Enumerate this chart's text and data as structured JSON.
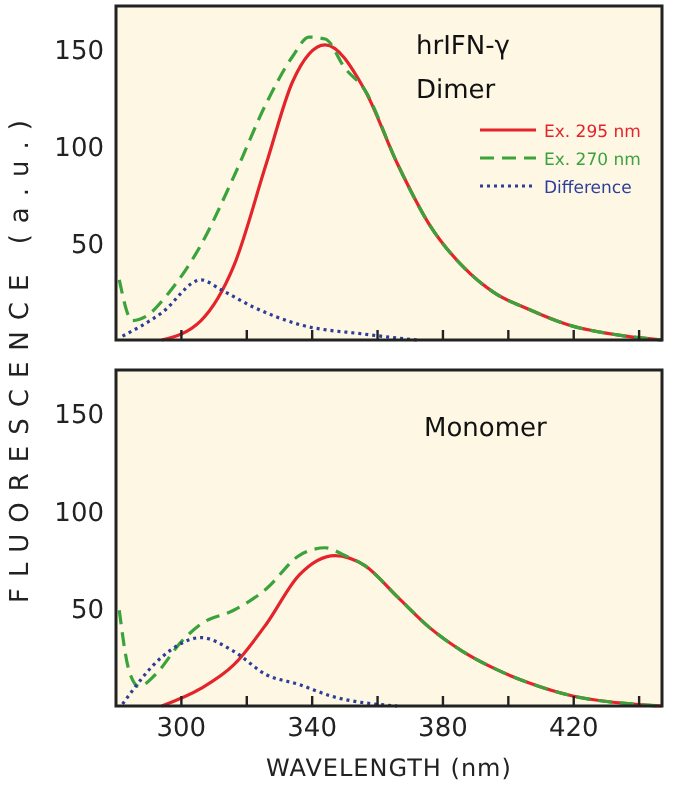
{
  "chart_data": [
    {
      "type": "line",
      "ylabel": "FLUORESCENCE (a.u.)",
      "annotations": [
        "hrIFN-γ",
        "Dimer"
      ],
      "xlim": [
        280,
        447
      ],
      "ylim": [
        0,
        172
      ],
      "xticks": [
        {
          "value": 300,
          "label": null
        },
        {
          "value": 320,
          "label": null
        },
        {
          "value": 340,
          "label": null
        },
        {
          "value": 360,
          "label": null
        },
        {
          "value": 380,
          "label": null
        },
        {
          "value": 400,
          "label": null
        },
        {
          "value": 420,
          "label": null
        },
        {
          "value": 440,
          "label": null
        }
      ],
      "yticks": [
        50,
        100,
        150
      ],
      "tick_labels": "y",
      "legend": "right",
      "grid": false,
      "series": [
        {
          "name": "Ex. 295 nm",
          "color": "#e3242b",
          "line_style": "solid",
          "x": [
            294,
            306,
            316,
            326,
            334,
            344,
            356,
            366,
            376,
            386,
            396,
            406,
            418,
            436,
            447
          ],
          "values": [
            0,
            10,
            38,
            91,
            133,
            152,
            129,
            91,
            59,
            38,
            24,
            16,
            8,
            2,
            0
          ]
        },
        {
          "name": "Ex. 270 nm",
          "color": "#3ba33b",
          "line_style": "dashed",
          "x": [
            281,
            285,
            289,
            296,
            306,
            316,
            326,
            334,
            339,
            344,
            350,
            356,
            366,
            376,
            386,
            396,
            406,
            418,
            436,
            447
          ],
          "values": [
            31,
            10,
            12,
            24,
            49,
            84,
            122,
            146,
            156,
            155,
            140,
            129,
            91,
            59,
            38,
            24,
            16,
            8,
            2,
            0
          ]
        },
        {
          "name": "Difference",
          "color": "#2c3d9a",
          "line_style": "dotted",
          "x": [
            282,
            294,
            306,
            312,
            322,
            336,
            356,
            372
          ],
          "values": [
            2,
            14,
            31,
            26,
            17,
            8,
            3,
            0
          ]
        }
      ]
    },
    {
      "type": "line",
      "xlabel": "WAVELENGTH (nm)",
      "annotations": [
        "Monomer"
      ],
      "xlim": [
        280,
        447
      ],
      "ylim": [
        0,
        172
      ],
      "xticks": [
        300,
        {
          "value": 320,
          "label": null
        },
        340,
        {
          "value": 360,
          "label": null
        },
        380,
        {
          "value": 400,
          "label": null
        },
        420,
        {
          "value": 440,
          "label": null
        }
      ],
      "yticks": [
        50,
        100,
        150
      ],
      "grid": false,
      "series": [
        {
          "color": "#e3242b",
          "line_style": "solid",
          "x": [
            294,
            306,
            316,
            326,
            336,
            347,
            356,
            366,
            376,
            386,
            396,
            406,
            420,
            438,
            447
          ],
          "values": [
            0,
            9,
            21,
            42,
            67,
            77,
            72,
            56,
            40,
            28,
            19,
            12,
            5,
            1,
            0
          ]
        },
        {
          "color": "#3ba33b",
          "line_style": "dashed",
          "x": [
            281,
            284,
            287,
            292,
            300,
            306,
            316,
            326,
            336,
            344,
            350,
            356,
            366,
            376,
            386,
            396,
            406,
            420,
            438,
            447
          ],
          "values": [
            49,
            18,
            10,
            16,
            33,
            42,
            49,
            60,
            77,
            81,
            77,
            72,
            56,
            40,
            28,
            19,
            12,
            5,
            1,
            0
          ]
        },
        {
          "color": "#2c3d9a",
          "line_style": "dotted",
          "x": [
            282,
            294,
            306,
            316,
            326,
            336,
            346,
            366
          ],
          "values": [
            1,
            25,
            35,
            28,
            16,
            11,
            5,
            0
          ]
        }
      ]
    }
  ]
}
